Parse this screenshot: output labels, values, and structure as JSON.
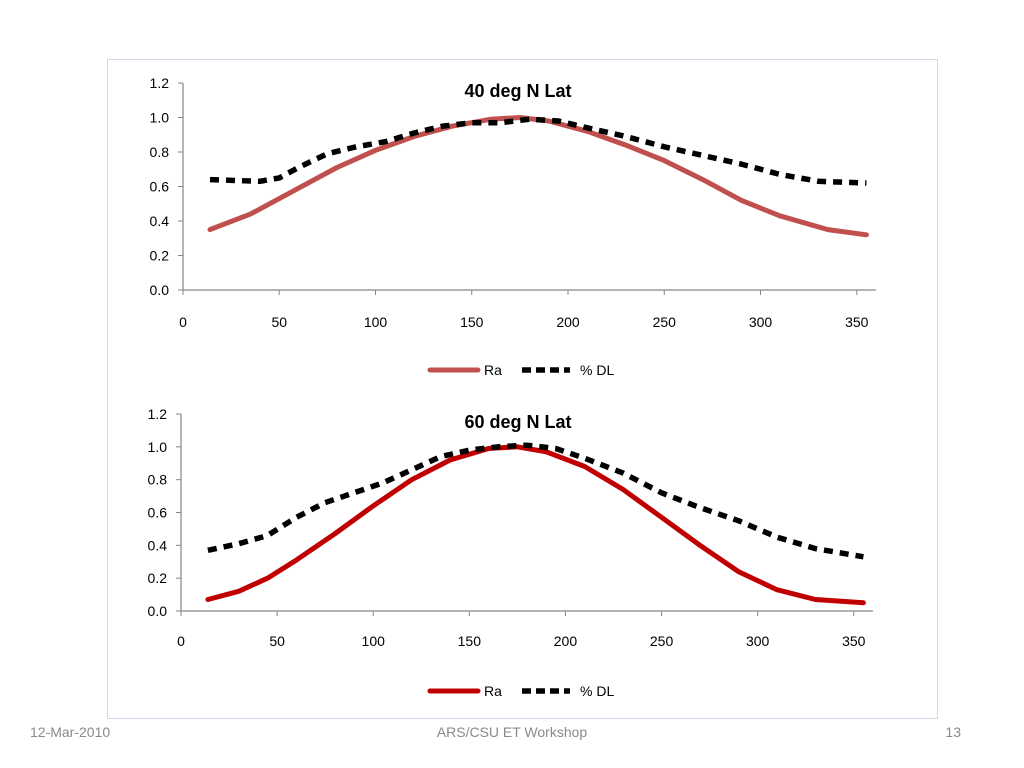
{
  "footer": {
    "date": "12-Mar-2010",
    "center": "ARS/CSU ET Workshop",
    "page": "13"
  },
  "chart_data": [
    {
      "type": "line",
      "title": "40 deg N Lat",
      "xlim": [
        0,
        360
      ],
      "ylim": [
        0,
        1.2
      ],
      "xticks": [
        0,
        50,
        100,
        150,
        200,
        250,
        300,
        350
      ],
      "yticks": [
        "0.0",
        "0.2",
        "0.4",
        "0.6",
        "0.8",
        "1.0",
        "1.2"
      ],
      "legend_position": "bottom",
      "series": [
        {
          "name": "Ra",
          "color": "#c0504d",
          "style": "solid",
          "x": [
            14,
            35,
            50,
            60,
            80,
            100,
            120,
            140,
            160,
            175,
            190,
            210,
            230,
            250,
            270,
            290,
            310,
            335,
            355
          ],
          "y": [
            0.35,
            0.44,
            0.53,
            0.59,
            0.71,
            0.81,
            0.89,
            0.95,
            0.99,
            1.0,
            0.98,
            0.92,
            0.84,
            0.75,
            0.64,
            0.52,
            0.43,
            0.35,
            0.32
          ]
        },
        {
          "name": "% DL",
          "color": "#000000",
          "style": "dashed",
          "x": [
            14,
            40,
            50,
            60,
            75,
            90,
            105,
            120,
            135,
            150,
            165,
            180,
            195,
            210,
            230,
            250,
            270,
            290,
            310,
            330,
            355
          ],
          "y": [
            0.64,
            0.63,
            0.65,
            0.71,
            0.79,
            0.83,
            0.86,
            0.91,
            0.95,
            0.97,
            0.97,
            0.99,
            0.98,
            0.94,
            0.89,
            0.83,
            0.78,
            0.73,
            0.67,
            0.63,
            0.62
          ]
        }
      ]
    },
    {
      "type": "line",
      "title": "60 deg N Lat",
      "xlim": [
        0,
        360
      ],
      "ylim": [
        0,
        1.2
      ],
      "xticks": [
        0,
        50,
        100,
        150,
        200,
        250,
        300,
        350
      ],
      "yticks": [
        "0.0",
        "0.2",
        "0.4",
        "0.6",
        "0.8",
        "1.0",
        "1.2"
      ],
      "legend_position": "bottom",
      "series": [
        {
          "name": "Ra",
          "color": "#c00000",
          "style": "solid",
          "x": [
            14,
            30,
            45,
            60,
            80,
            100,
            120,
            140,
            160,
            175,
            190,
            210,
            230,
            250,
            270,
            290,
            310,
            330,
            355
          ],
          "y": [
            0.07,
            0.12,
            0.2,
            0.31,
            0.47,
            0.64,
            0.8,
            0.92,
            0.99,
            1.0,
            0.97,
            0.88,
            0.74,
            0.57,
            0.4,
            0.24,
            0.13,
            0.07,
            0.05
          ]
        },
        {
          "name": "% DL",
          "color": "#000000",
          "style": "dashed",
          "x": [
            14,
            30,
            45,
            60,
            75,
            90,
            105,
            120,
            135,
            150,
            165,
            180,
            195,
            210,
            230,
            250,
            270,
            290,
            310,
            330,
            355
          ],
          "y": [
            0.37,
            0.41,
            0.46,
            0.57,
            0.66,
            0.72,
            0.78,
            0.86,
            0.94,
            0.98,
            1.0,
            1.01,
            0.99,
            0.93,
            0.84,
            0.72,
            0.63,
            0.55,
            0.45,
            0.38,
            0.33
          ]
        }
      ]
    }
  ]
}
